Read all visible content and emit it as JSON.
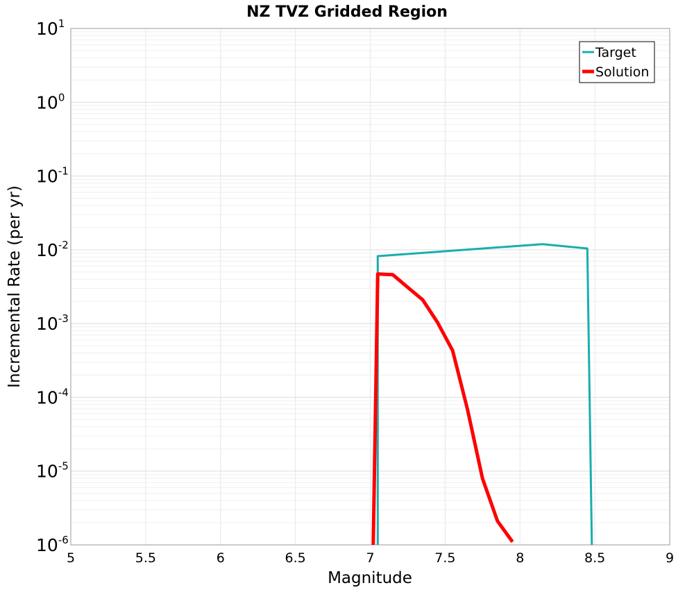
{
  "chart_data": {
    "type": "line",
    "title": "NZ TVZ Gridded Region",
    "xlabel": "Magnitude",
    "ylabel": "Incremental Rate (per yr)",
    "xlim": [
      5,
      9
    ],
    "ylim": [
      1e-06,
      10
    ],
    "yscale": "log",
    "xticks": [
      "5",
      "5.5",
      "6",
      "6.5",
      "7",
      "7.5",
      "8",
      "8.5",
      "9"
    ],
    "yticks": [
      {
        "base": "10",
        "exp": "-6"
      },
      {
        "base": "10",
        "exp": "-5"
      },
      {
        "base": "10",
        "exp": "-4"
      },
      {
        "base": "10",
        "exp": "-3"
      },
      {
        "base": "10",
        "exp": "-2"
      },
      {
        "base": "10",
        "exp": "-1"
      },
      {
        "base": "10",
        "exp": "0"
      },
      {
        "base": "10",
        "exp": "1"
      }
    ],
    "grid": true,
    "legend_position": "top-right",
    "series": [
      {
        "name": "Target",
        "color": "#1aadad",
        "x": [
          7.05,
          7.05,
          8.15,
          8.45,
          8.48
        ],
        "y": [
          1e-06,
          0.0082,
          0.0119,
          0.0104,
          1e-06
        ]
      },
      {
        "name": "Solution",
        "color": "#ff0000",
        "x": [
          7.02,
          7.05,
          7.15,
          7.25,
          7.35,
          7.45,
          7.55,
          7.65,
          7.75,
          7.85,
          7.95
        ],
        "y": [
          1e-06,
          0.0047,
          0.0046,
          0.0031,
          0.0021,
          0.00103,
          0.00043,
          6.8e-05,
          7.9e-06,
          2.1e-06,
          1.1e-06
        ]
      }
    ]
  }
}
